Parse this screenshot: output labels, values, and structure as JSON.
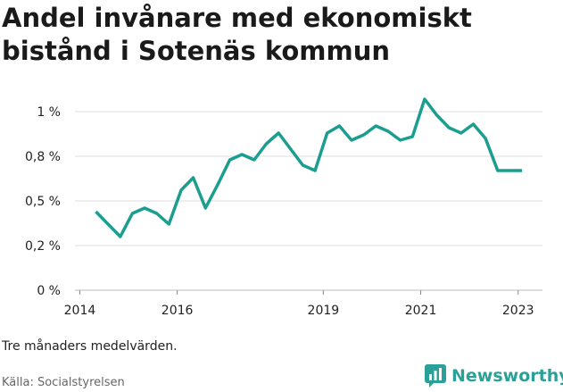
{
  "chart_data": {
    "type": "line",
    "title": "Andel invånare med ekonomiskt bistånd i Sotenäs kommun",
    "xlabel": "",
    "ylabel": "",
    "ylim": [
      0,
      1.05
    ],
    "y_ticks": [
      {
        "value": 0,
        "label": "0 %"
      },
      {
        "value": 0.25,
        "label": "0,2 %"
      },
      {
        "value": 0.5,
        "label": "0,5 %"
      },
      {
        "value": 0.75,
        "label": "0,8 %"
      },
      {
        "value": 1.0,
        "label": "1 %"
      }
    ],
    "xlim": [
      2013.9,
      2023.5
    ],
    "x_ticks": [
      {
        "value": 2014,
        "label": "2014"
      },
      {
        "value": 2016,
        "label": "2016"
      },
      {
        "value": 2019,
        "label": "2019"
      },
      {
        "value": 2021,
        "label": "2021"
      },
      {
        "value": 2023,
        "label": "2023"
      }
    ],
    "grid": true,
    "line_color": "#1a9e8f",
    "series": [
      {
        "x": [
          2014.33,
          2014.58,
          2014.83,
          2015.08,
          2015.33,
          2015.58,
          2015.83,
          2016.08,
          2016.33,
          2016.58,
          2016.83,
          2017.08,
          2017.33,
          2017.58,
          2017.83,
          2018.08,
          2018.33,
          2018.58,
          2018.83,
          2019.08,
          2019.33,
          2019.58,
          2019.83,
          2020.08,
          2020.33,
          2020.58,
          2020.83,
          2021.08,
          2021.33,
          2021.58,
          2021.83,
          2022.08,
          2022.33,
          2022.58,
          2022.83,
          2023.08
        ],
        "values": [
          0.44,
          0.37,
          0.3,
          0.43,
          0.46,
          0.43,
          0.37,
          0.56,
          0.63,
          0.46,
          0.59,
          0.73,
          0.76,
          0.73,
          0.82,
          0.88,
          0.79,
          0.7,
          0.67,
          0.88,
          0.92,
          0.84,
          0.87,
          0.92,
          0.89,
          0.84,
          0.86,
          1.07,
          0.98,
          0.91,
          0.88,
          0.93,
          0.85,
          0.67,
          0.67,
          0.67
        ]
      }
    ]
  },
  "note": "Tre månaders medelvärden.",
  "source": "Källa: Socialstyrelsen",
  "brand": {
    "name": "Newsworthy",
    "color": "#2aa198"
  }
}
